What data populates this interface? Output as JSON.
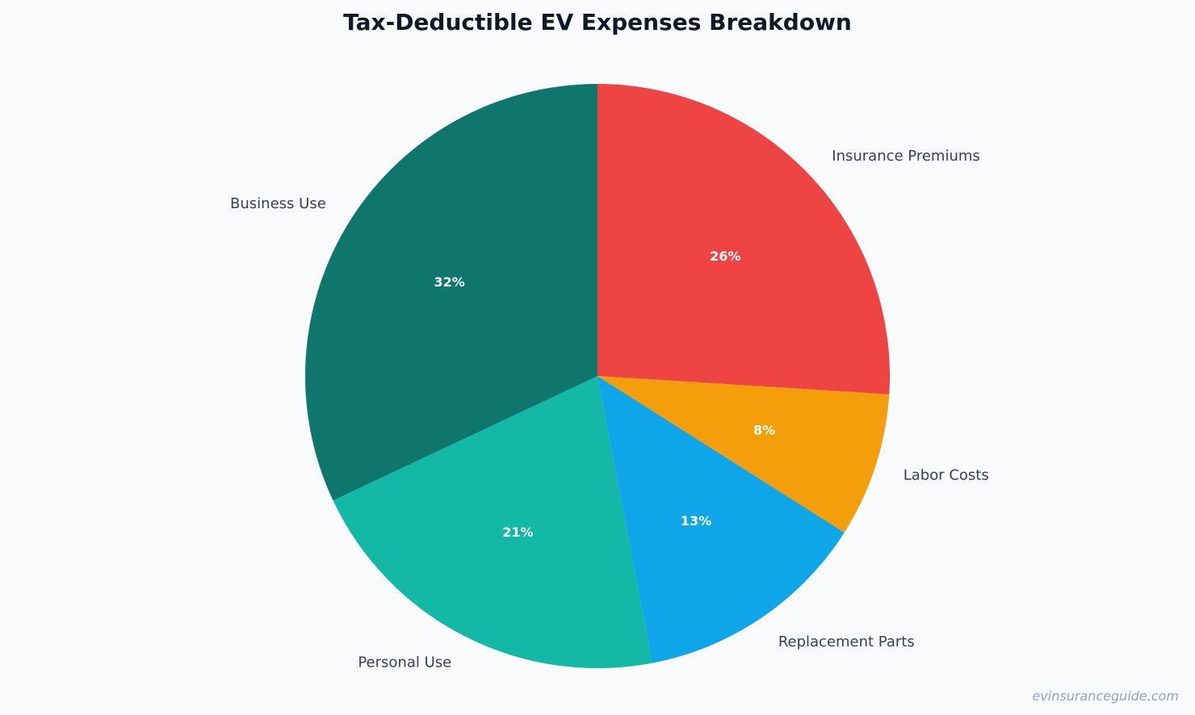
{
  "chart_data": {
    "type": "pie",
    "title": "Tax-Deductible EV Expenses Breakdown",
    "start_angle_deg": 0,
    "direction": "clockwise",
    "slices": [
      {
        "label": "Insurance Premiums",
        "value": 26,
        "pct_label": "26%",
        "color": "#ef4444"
      },
      {
        "label": "Labor Costs",
        "value": 8,
        "pct_label": "8%",
        "color": "#f59e0b"
      },
      {
        "label": "Replacement Parts",
        "value": 13,
        "pct_label": "13%",
        "color": "#0ea5e9"
      },
      {
        "label": "Personal Use",
        "value": 21,
        "pct_label": "21%",
        "color": "#14b8a6"
      },
      {
        "label": "Business Use",
        "value": 32,
        "pct_label": "32%",
        "color": "#0f766e"
      }
    ]
  },
  "watermark": "evinsuranceguide.com"
}
